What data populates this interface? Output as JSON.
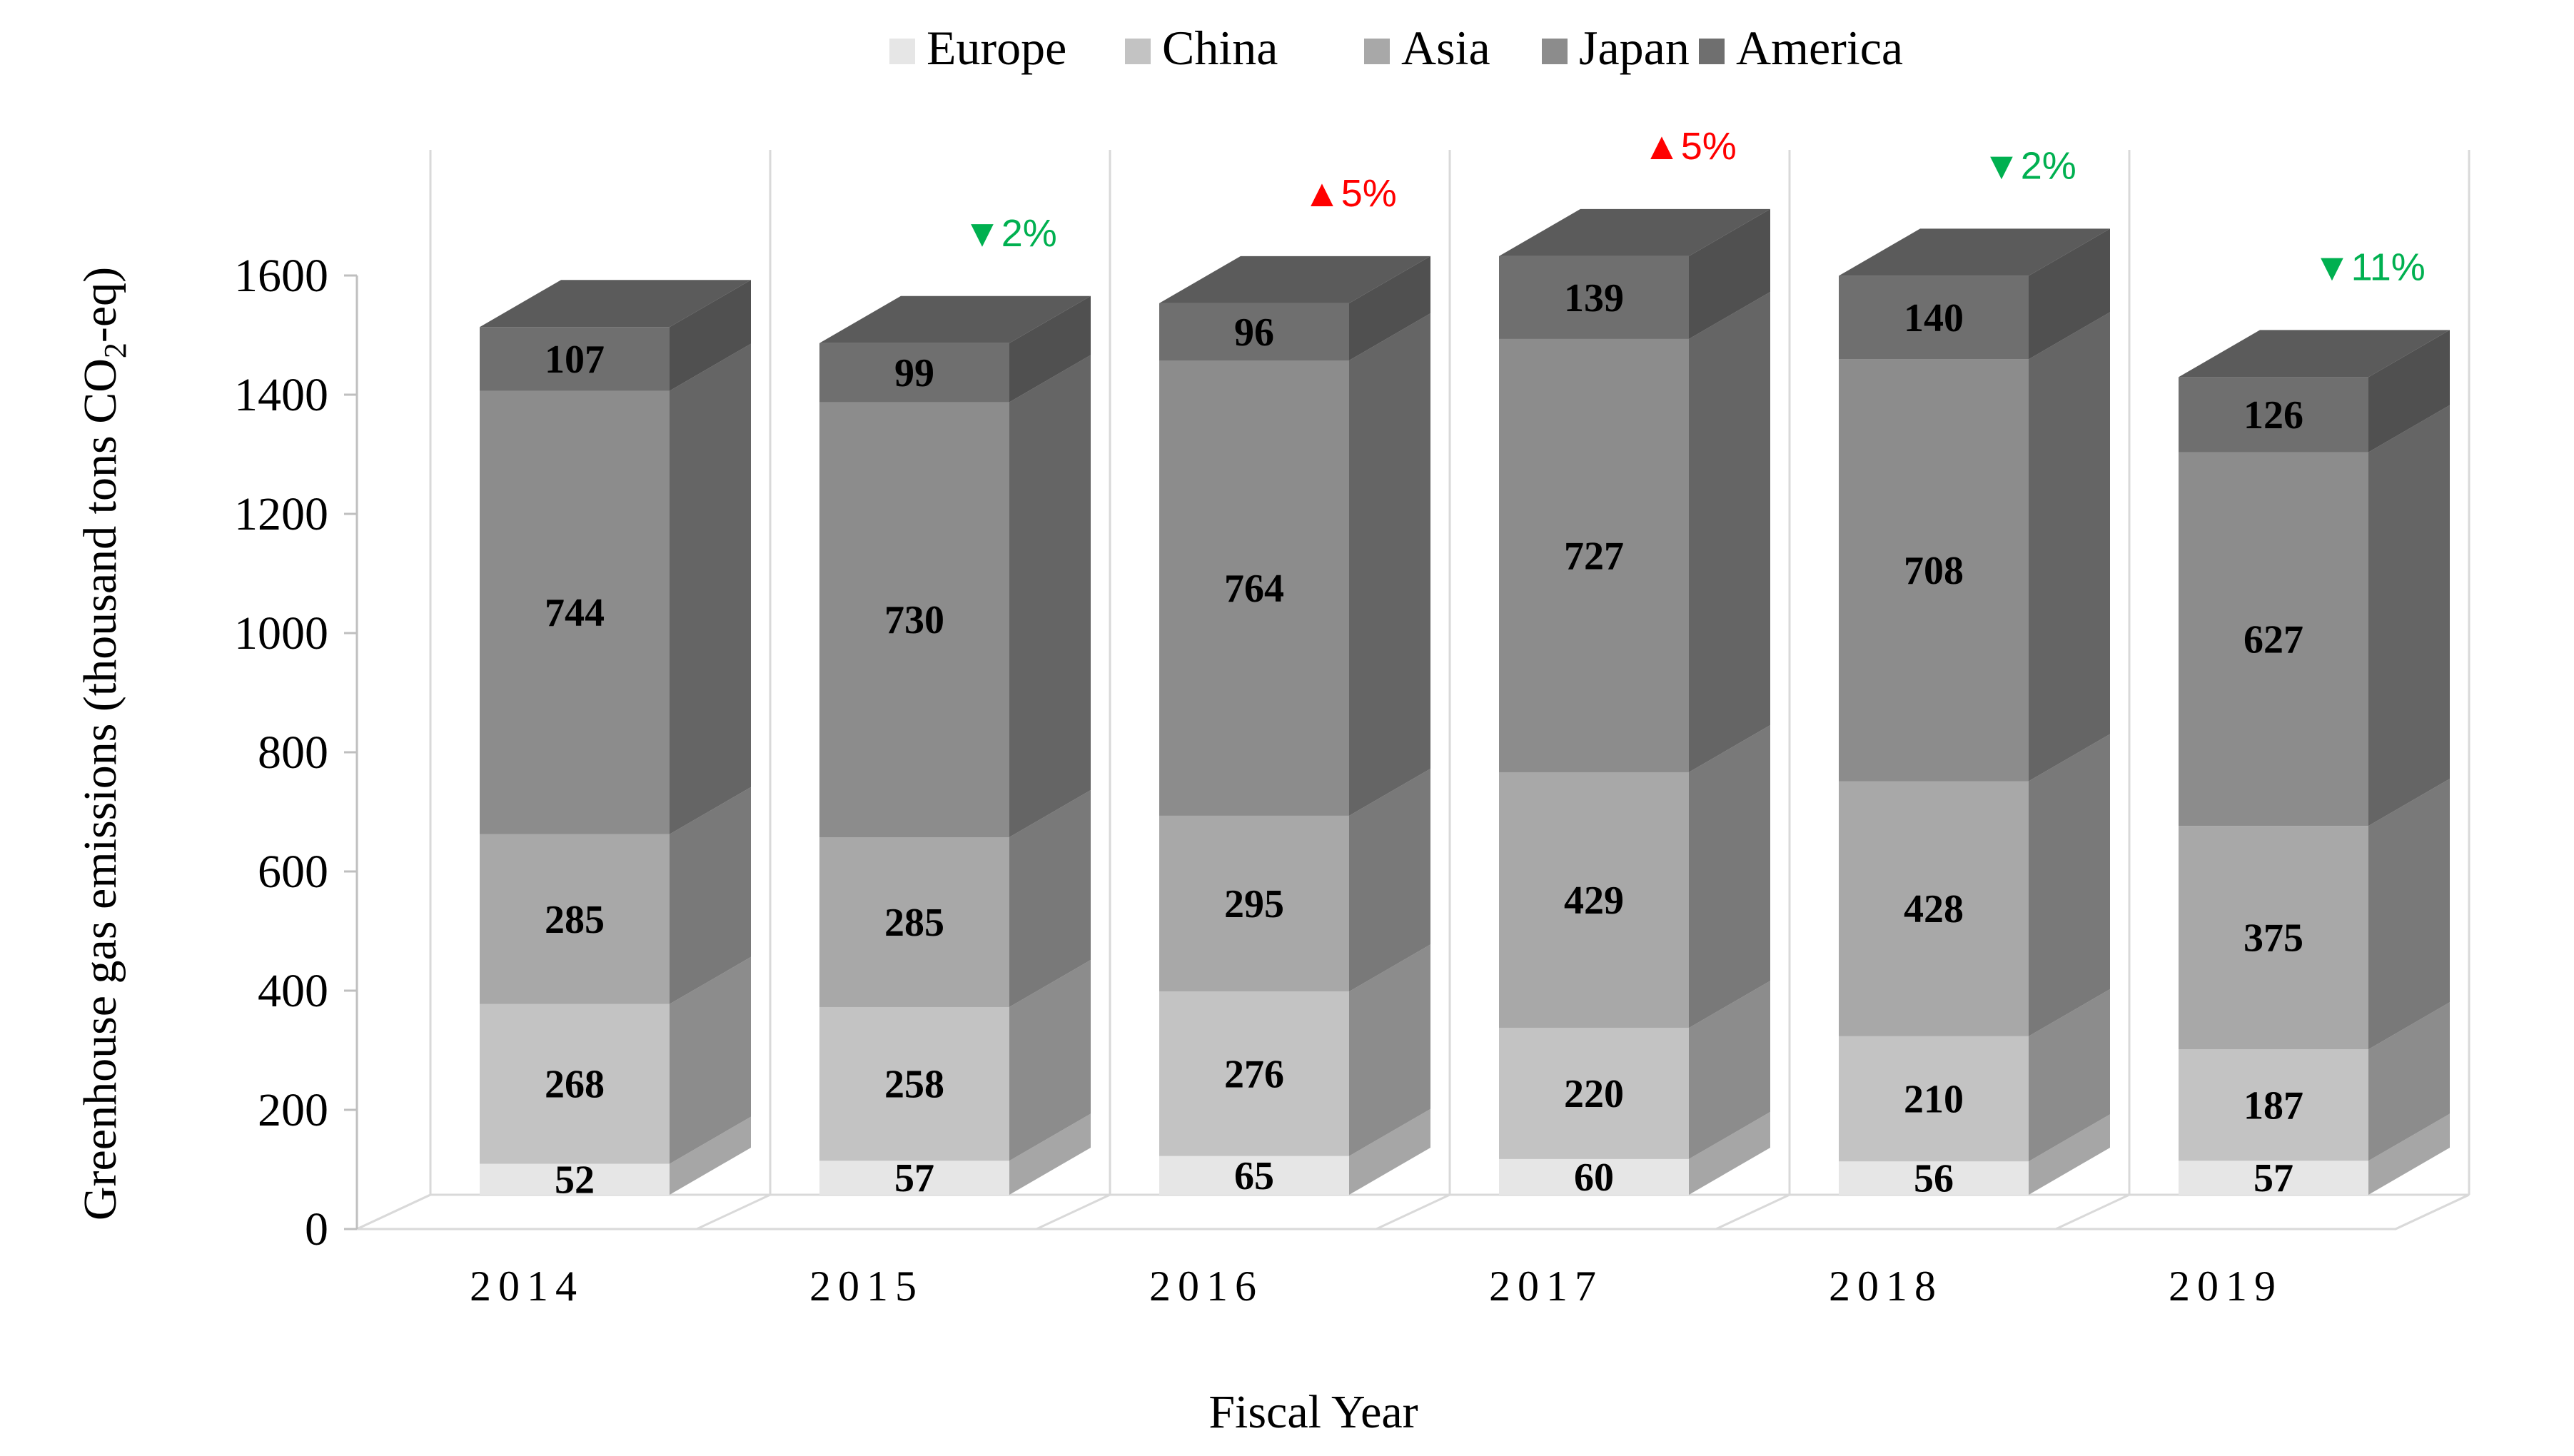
{
  "chart_data": {
    "type": "bar",
    "stacked": true,
    "three_d": true,
    "title": "",
    "xlabel": "Fiscal Year",
    "ylabel": "Greenhouse gas emissions (thousand tons CO2-eq)",
    "ylabel_parts": {
      "before": "Greenhouse gas emissions (thousand tons CO",
      "sub": "2",
      "after": "-eq)"
    },
    "ylim": [
      0,
      1600
    ],
    "yticks": [
      "0",
      "200",
      "400",
      "600",
      "800",
      "1000",
      "1200",
      "1400",
      "1600"
    ],
    "categories": [
      "2014",
      "2015",
      "2016",
      "2017",
      "2018",
      "2019"
    ],
    "series": [
      {
        "name": "Europe",
        "values": [
          52,
          57,
          65,
          60,
          56,
          57
        ],
        "color": "#e6e6e6"
      },
      {
        "name": "China",
        "values": [
          268,
          258,
          276,
          220,
          210,
          187
        ],
        "color": "#c3c3c3"
      },
      {
        "name": "Asia",
        "values": [
          285,
          285,
          295,
          429,
          428,
          375
        ],
        "color": "#a8a8a8"
      },
      {
        "name": "Japan",
        "values": [
          744,
          730,
          764,
          727,
          708,
          627
        ],
        "color": "#8c8c8c"
      },
      {
        "name": "America",
        "values": [
          107,
          99,
          96,
          139,
          140,
          126
        ],
        "color": "#6f6f6f"
      }
    ],
    "labels": [
      [
        "52",
        "57",
        "65",
        "60",
        "56",
        "57"
      ],
      [
        "268",
        "258",
        "276",
        "220",
        "210",
        "187"
      ],
      [
        "285",
        "285",
        "295",
        "429",
        "428",
        "375"
      ],
      [
        "744",
        "730",
        "764",
        "727",
        "708",
        "627"
      ],
      [
        "107",
        "99",
        "96",
        "139",
        "140",
        "126"
      ]
    ],
    "annotations": [
      null,
      {
        "text": "▼2%",
        "direction": "down",
        "color": "#00b050"
      },
      {
        "text": "▲5%",
        "direction": "up",
        "color": "#ff0000"
      },
      {
        "text": "▲5%",
        "direction": "up",
        "color": "#ff0000"
      },
      {
        "text": "▼2%",
        "direction": "down",
        "color": "#00b050"
      },
      {
        "text": "▼11%",
        "direction": "down",
        "color": "#00b050"
      }
    ],
    "legend_position": "top",
    "grid": true
  }
}
